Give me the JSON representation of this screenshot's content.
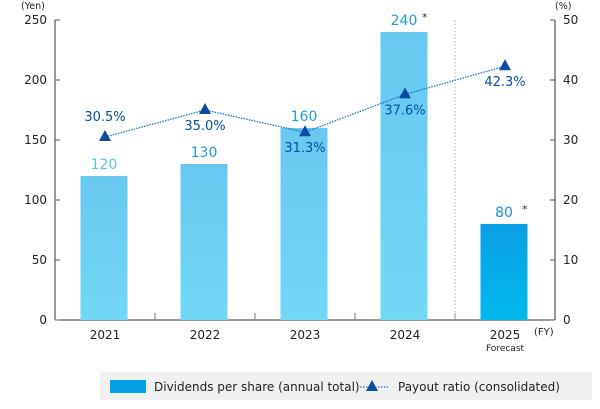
{
  "chart_data": {
    "type": "bar",
    "categories": [
      "2021",
      "2022",
      "2023",
      "2024",
      "2025"
    ],
    "category_sublabels": [
      "",
      "",
      "",
      "",
      "Forecast"
    ],
    "x_unit": "(FY)",
    "left_axis": {
      "unit": "(Yen)",
      "ylim": [
        0,
        250
      ],
      "ticks": [
        0,
        50,
        100,
        150,
        200,
        250
      ]
    },
    "right_axis": {
      "unit": "(%)",
      "ylim": [
        0,
        50
      ],
      "ticks": [
        0,
        10,
        20,
        30,
        40,
        50
      ]
    },
    "series": [
      {
        "name": "Dividends per share (annual total)",
        "type": "bar",
        "axis": "left",
        "values": [
          120,
          130,
          160,
          240,
          80
        ],
        "labels": [
          "120",
          "130",
          "160",
          "240",
          "80"
        ],
        "label_notes": [
          "",
          "",
          "",
          "*",
          "*"
        ],
        "color": "#00a0e9"
      },
      {
        "name": "Payout ratio (consolidated)",
        "type": "line",
        "axis": "right",
        "marker": "triangle",
        "line_style": "dotted",
        "values": [
          30.5,
          35.0,
          31.3,
          37.6,
          42.3
        ],
        "labels": [
          "30.5%",
          "35.0%",
          "31.3%",
          "37.6%",
          "42.3%"
        ],
        "color": "#0a4da2"
      }
    ],
    "grid": false,
    "legend_position": "bottom-right",
    "forecast_separator": "dotted line between 2024 and 2025"
  }
}
